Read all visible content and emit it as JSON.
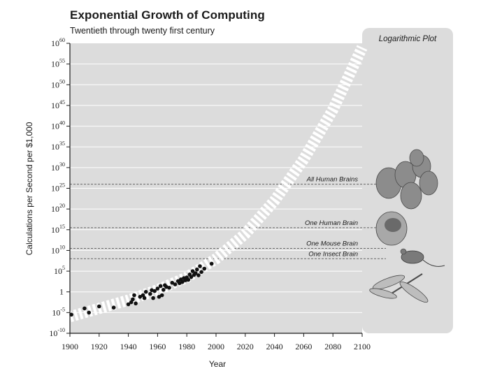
{
  "header": {
    "title": "Exponential Growth of Computing",
    "subtitle": "Twentieth through twenty first century"
  },
  "side_panel": {
    "title": "Logarithmic Plot"
  },
  "chart_data": {
    "type": "scatter",
    "title": "Exponential Growth of Computing",
    "subtitle": "Twentieth through twenty first century",
    "xlabel": "Year",
    "ylabel": "Calculations per Second per $1,000",
    "x_ticks": [
      1900,
      1920,
      1940,
      1960,
      1980,
      2000,
      2020,
      2040,
      2060,
      2080,
      2100
    ],
    "xlim": [
      1900,
      2100
    ],
    "y_scale": "log",
    "y_ticks": [
      {
        "base": "10",
        "exp": "-10"
      },
      {
        "base": "10",
        "exp": "-5"
      },
      {
        "base": "1",
        "exp": ""
      },
      {
        "base": "10",
        "exp": "5"
      },
      {
        "base": "10",
        "exp": "10"
      },
      {
        "base": "10",
        "exp": "15"
      },
      {
        "base": "10",
        "exp": "20"
      },
      {
        "base": "10",
        "exp": "25"
      },
      {
        "base": "10",
        "exp": "30"
      },
      {
        "base": "10",
        "exp": "35"
      },
      {
        "base": "10",
        "exp": "40"
      },
      {
        "base": "10",
        "exp": "45"
      },
      {
        "base": "10",
        "exp": "50"
      },
      {
        "base": "10",
        "exp": "55"
      },
      {
        "base": "10",
        "exp": "60"
      }
    ],
    "ylim_exponent": [
      -10,
      60
    ],
    "grid": true,
    "reference_lines": [
      {
        "label": "All Human Brains",
        "value_exponent": 26
      },
      {
        "label": "One Human Brain",
        "value_exponent": 15.5
      },
      {
        "label": "One Mouse Brain",
        "value_exponent": 10.5
      },
      {
        "label": "One Insect Brain",
        "value_exponent": 8
      }
    ],
    "series": [
      {
        "points": [
          {
            "x": 1901,
            "y_exponent": -5.5
          },
          {
            "x": 1910,
            "y_exponent": -4
          },
          {
            "x": 1913,
            "y_exponent": -5
          },
          {
            "x": 1920,
            "y_exponent": -3.5
          },
          {
            "x": 1930,
            "y_exponent": -3.8
          },
          {
            "x": 1940,
            "y_exponent": -3
          },
          {
            "x": 1942,
            "y_exponent": -2.5
          },
          {
            "x": 1943,
            "y_exponent": -1.8
          },
          {
            "x": 1944,
            "y_exponent": -0.8
          },
          {
            "x": 1945,
            "y_exponent": -2.8
          },
          {
            "x": 1948,
            "y_exponent": -1.2
          },
          {
            "x": 1950,
            "y_exponent": -0.8
          },
          {
            "x": 1951,
            "y_exponent": -1.5
          },
          {
            "x": 1952,
            "y_exponent": 0
          },
          {
            "x": 1955,
            "y_exponent": -0.5
          },
          {
            "x": 1956,
            "y_exponent": 0.4
          },
          {
            "x": 1957,
            "y_exponent": -1.5
          },
          {
            "x": 1958,
            "y_exponent": 0.2
          },
          {
            "x": 1960,
            "y_exponent": 0.8
          },
          {
            "x": 1961,
            "y_exponent": -1.2
          },
          {
            "x": 1962,
            "y_exponent": 1.4
          },
          {
            "x": 1963,
            "y_exponent": -0.8
          },
          {
            "x": 1964,
            "y_exponent": 0.5
          },
          {
            "x": 1965,
            "y_exponent": 1.6
          },
          {
            "x": 1966,
            "y_exponent": 1.2
          },
          {
            "x": 1968,
            "y_exponent": 1
          },
          {
            "x": 1970,
            "y_exponent": 2.2
          },
          {
            "x": 1972,
            "y_exponent": 1.8
          },
          {
            "x": 1974,
            "y_exponent": 2.6
          },
          {
            "x": 1975,
            "y_exponent": 2.1
          },
          {
            "x": 1976,
            "y_exponent": 3
          },
          {
            "x": 1977,
            "y_exponent": 2.4
          },
          {
            "x": 1978,
            "y_exponent": 3.3
          },
          {
            "x": 1979,
            "y_exponent": 2.8
          },
          {
            "x": 1980,
            "y_exponent": 3.5
          },
          {
            "x": 1981,
            "y_exponent": 2.9
          },
          {
            "x": 1982,
            "y_exponent": 4.2
          },
          {
            "x": 1983,
            "y_exponent": 3.6
          },
          {
            "x": 1984,
            "y_exponent": 5
          },
          {
            "x": 1985,
            "y_exponent": 4.1
          },
          {
            "x": 1986,
            "y_exponent": 4.5
          },
          {
            "x": 1987,
            "y_exponent": 5.4
          },
          {
            "x": 1988,
            "y_exponent": 4
          },
          {
            "x": 1989,
            "y_exponent": 6.2
          },
          {
            "x": 1990,
            "y_exponent": 4.8
          },
          {
            "x": 1992,
            "y_exponent": 5.6
          },
          {
            "x": 1997,
            "y_exponent": 6.8
          }
        ]
      },
      {
        "type": "line",
        "style": "dashed-white",
        "points": [
          {
            "x": 1900,
            "y_exponent": -6
          },
          {
            "x": 1920,
            "y_exponent": -4
          },
          {
            "x": 1940,
            "y_exponent": -2
          },
          {
            "x": 1960,
            "y_exponent": 0.5
          },
          {
            "x": 1980,
            "y_exponent": 3.5
          },
          {
            "x": 2000,
            "y_exponent": 8
          },
          {
            "x": 2020,
            "y_exponent": 14
          },
          {
            "x": 2040,
            "y_exponent": 22
          },
          {
            "x": 2060,
            "y_exponent": 32
          },
          {
            "x": 2080,
            "y_exponent": 44
          },
          {
            "x": 2100,
            "y_exponent": 59
          }
        ]
      }
    ],
    "colors": {
      "plot_background": "#dcdcdc",
      "panel_background": "#dcdcdc",
      "points": "#111111",
      "trend": "#ffffff",
      "reference_line": "#666666"
    }
  }
}
